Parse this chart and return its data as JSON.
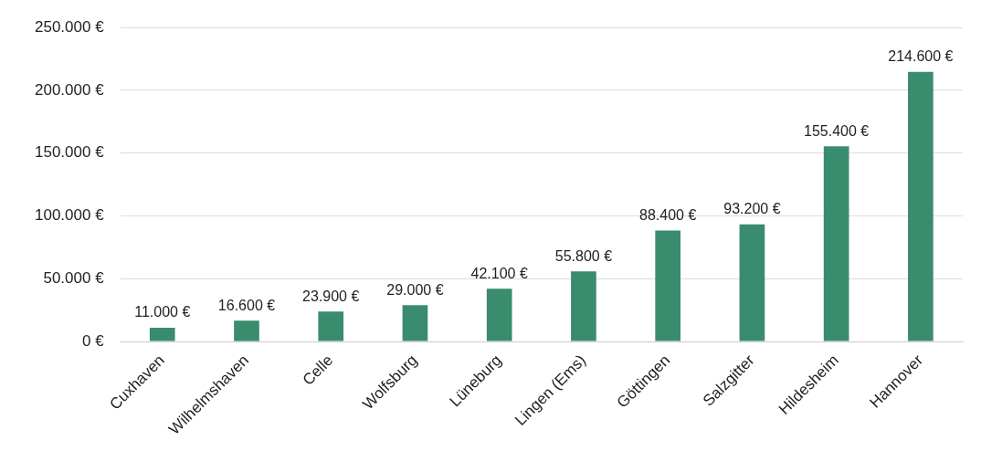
{
  "chart_data": {
    "type": "bar",
    "categories": [
      "Cuxhaven",
      "Wilhelmshaven",
      "Celle",
      "Wolfsburg",
      "Lüneburg",
      "Lingen (Ems)",
      "Göttingen",
      "Salzgitter",
      "Hildesheim",
      "Hannover"
    ],
    "values": [
      11000,
      16600,
      23900,
      29000,
      42100,
      55800,
      88400,
      93200,
      155400,
      214600
    ],
    "value_labels": [
      "11.000 €",
      "16.600 €",
      "23.900 €",
      "29.000 €",
      "42.100 €",
      "55.800 €",
      "88.400 €",
      "93.200 €",
      "155.400 €",
      "214.600 €"
    ],
    "color": "#3a8c6e",
    "ylim": [
      0,
      250000
    ],
    "yticks": [
      {
        "value": 0,
        "label": "0 €"
      },
      {
        "value": 50000,
        "label": "50.000 €"
      },
      {
        "value": 100000,
        "label": "100.000 €"
      },
      {
        "value": 150000,
        "label": "150.000 €"
      },
      {
        "value": 200000,
        "label": "200.000 €"
      },
      {
        "value": 250000,
        "label": "250.000 €"
      }
    ],
    "grid": "y"
  }
}
